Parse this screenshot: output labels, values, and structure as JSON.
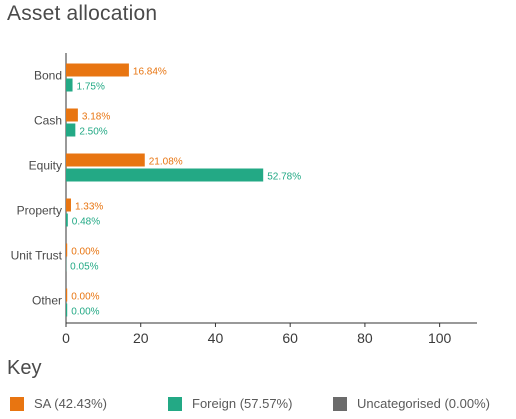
{
  "page": {
    "title": "Asset allocation",
    "key_title": "Key"
  },
  "chart_data": {
    "type": "bar",
    "orientation": "horizontal",
    "categories": [
      "Bond",
      "Cash",
      "Equity",
      "Property",
      "Unit Trust",
      "Other"
    ],
    "series": [
      {
        "name": "SA",
        "values": [
          16.84,
          3.18,
          21.08,
          1.33,
          0.0,
          0.0
        ],
        "labels": [
          "16.84%",
          "3.18%",
          "21.08%",
          "1.33%",
          "0.00%",
          "0.00%"
        ],
        "color": "#e87511"
      },
      {
        "name": "Foreign",
        "values": [
          1.75,
          2.5,
          52.78,
          0.48,
          0.05,
          0.0
        ],
        "labels": [
          "1.75%",
          "2.50%",
          "52.78%",
          "0.48%",
          "0.05%",
          "0.00%"
        ],
        "color": "#23a985"
      }
    ],
    "x_ticks": [
      0,
      20,
      40,
      60,
      80,
      100
    ],
    "xlim": [
      0,
      110
    ],
    "grid": false,
    "legend_position": "bottom",
    "legend": [
      {
        "label": "SA (42.43%)",
        "color": "#e87511"
      },
      {
        "label": "Foreign (57.57%)",
        "color": "#23a985"
      },
      {
        "label": "Uncategorised (0.00%)",
        "color": "#6b6b6b"
      }
    ]
  }
}
